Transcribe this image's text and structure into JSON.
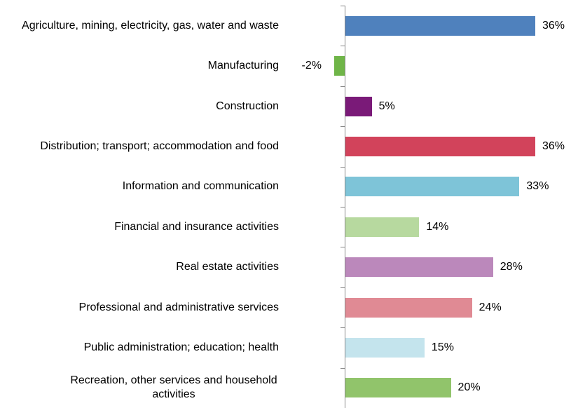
{
  "chart_data": {
    "type": "bar",
    "orientation": "horizontal",
    "categories": [
      "Agriculture, mining, electricity, gas, water and waste",
      "Manufacturing",
      "Construction",
      "Distribution; transport; accommodation and food",
      "Information and communication",
      "Financial and insurance activities",
      "Real estate activities",
      "Professional and administrative services",
      "Public administration; education; health",
      "Recreation, other services and household activities"
    ],
    "values": [
      36,
      -2,
      5,
      36,
      33,
      14,
      28,
      24,
      15,
      20
    ],
    "value_labels": [
      "36%",
      "-2%",
      "5%",
      "36%",
      "33%",
      "14%",
      "28%",
      "24%",
      "15%",
      "20%"
    ],
    "colors": [
      "#4f81bd",
      "#6fb548",
      "#7a1a78",
      "#d2435b",
      "#7ec4d8",
      "#b7d99f",
      "#bb88bb",
      "#e08a94",
      "#c4e4ed",
      "#91c46b"
    ]
  }
}
